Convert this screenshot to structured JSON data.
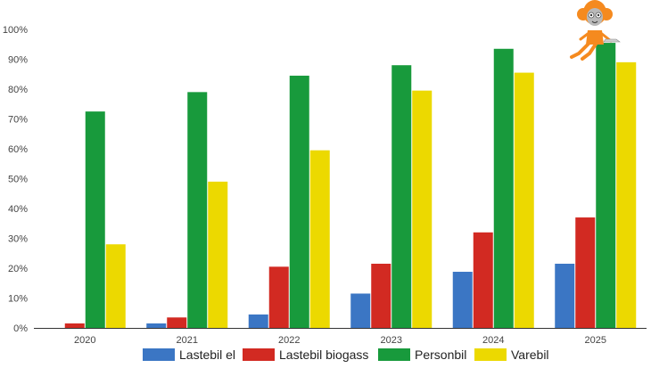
{
  "chart_data": {
    "type": "bar",
    "categories": [
      "2020",
      "2021",
      "2022",
      "2023",
      "2024",
      "2025"
    ],
    "series": [
      {
        "name": "Lastebil el",
        "color": "#3b76c4",
        "values": [
          0,
          1.5,
          4.5,
          11.5,
          18.8,
          21.5
        ]
      },
      {
        "name": "Lastebil biogass",
        "color": "#d22a22",
        "values": [
          1.5,
          3.5,
          20.5,
          21.5,
          32,
          37
        ]
      },
      {
        "name": "Personbil",
        "color": "#189a3c",
        "values": [
          72.5,
          79,
          84.5,
          88,
          93.5,
          95.5
        ]
      },
      {
        "name": "Varebil",
        "color": "#ecd900",
        "values": [
          28,
          49,
          59.5,
          79.5,
          85.5,
          89
        ]
      }
    ],
    "ylim": [
      0,
      100
    ],
    "yticks": [
      "0%",
      "10%",
      "20%",
      "30%",
      "40%",
      "50%",
      "60%",
      "70%",
      "80%",
      "90%",
      "100%"
    ],
    "grid": false,
    "legend_position": "bottom",
    "title": "",
    "xlabel": "",
    "ylabel": ""
  },
  "mascot": {
    "icon": "orange-haired-cartoon-girl-icon",
    "hair_color": "#f58a1f"
  }
}
